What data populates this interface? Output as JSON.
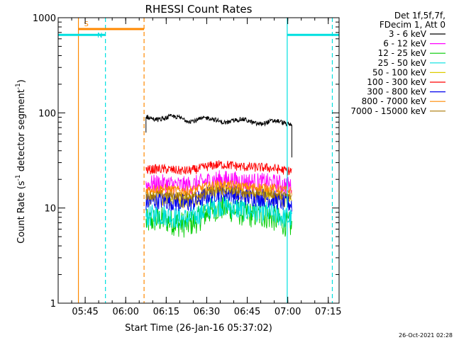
{
  "chart_data": {
    "type": "line",
    "title": "RHESSI Count Rates",
    "xlabel": "Start Time (26-Jan-16 05:37:02)",
    "ylabel_main": "Count Rate (s",
    "ylabel_sup1": "-1",
    "ylabel_mid": " detector segment",
    "ylabel_sup2": "-1",
    "ylabel_end": ")",
    "y_scale": "log",
    "ylim": [
      1,
      1000
    ],
    "xlim_minutes": [
      -2,
      102
    ],
    "x_tick_minutes": [
      8,
      23,
      38,
      53,
      68,
      83,
      98
    ],
    "x_tick_labels": [
      "05:45",
      "06:00",
      "06:15",
      "06:30",
      "06:45",
      "07:00",
      "07:15"
    ],
    "y_tick_values": [
      1,
      10,
      100,
      1000
    ],
    "y_tick_labels": [
      "1",
      "10",
      "100",
      "1000"
    ],
    "legend_header": [
      "Det 1f,5f,7f,",
      "FDecim 1, Att 0"
    ],
    "legend_position": "right",
    "series": [
      {
        "name": "3 - 6 keV",
        "color": "#000000",
        "base": 90,
        "lift": 0.0,
        "noise": 0.05
      },
      {
        "name": "6 - 12 keV",
        "color": "#ff00ff",
        "base": 17.5,
        "lift": 0.1,
        "noise": 0.1
      },
      {
        "name": "12 - 25 keV",
        "color": "#00cc00",
        "base": 7.0,
        "lift": 0.28,
        "noise": 0.14
      },
      {
        "name": "25 - 50 keV",
        "color": "#00e0e0",
        "base": 8.0,
        "lift": 0.22,
        "noise": 0.12
      },
      {
        "name": "50 - 100 keV",
        "color": "#ddcc00",
        "base": 12.5,
        "lift": 0.18,
        "noise": 0.09
      },
      {
        "name": "100 - 300 keV",
        "color": "#ff0000",
        "base": 25,
        "lift": 0.1,
        "noise": 0.05
      },
      {
        "name": "300 - 800 keV",
        "color": "#0000ee",
        "base": 11.5,
        "lift": 0.18,
        "noise": 0.1
      },
      {
        "name": "800 - 7000 keV",
        "color": "#ff8800",
        "base": 15.5,
        "lift": 0.1,
        "noise": 0.05
      },
      {
        "name": "7000 - 15000 keV",
        "color": "#aa7700",
        "base": 13.5,
        "lift": 0.1,
        "noise": 0.05
      }
    ],
    "data_start_minute": 30.5,
    "data_end_minute": 84.5,
    "flags": [
      {
        "label": "S",
        "color": "#ff8800",
        "start_minute": 5.5,
        "end_minute": 29.8,
        "y": 760
      },
      {
        "label": "N",
        "color": "#00e0e0",
        "start_minute": -2,
        "end_minute": 15.5,
        "y": 660
      },
      {
        "label": "",
        "color": "#00e0e0",
        "start_minute": 82.8,
        "end_minute": 102,
        "y": 660
      }
    ],
    "vlines": [
      {
        "minute": 5.5,
        "color": "#ff8800",
        "style": "solid"
      },
      {
        "minute": 15.5,
        "color": "#00e0e0",
        "style": "dashed"
      },
      {
        "minute": 29.8,
        "color": "#ff8800",
        "style": "dashed"
      },
      {
        "minute": 82.8,
        "color": "#00e0e0",
        "style": "solid"
      },
      {
        "minute": 99.5,
        "color": "#00e0e0",
        "style": "dashed"
      }
    ]
  },
  "footer": {
    "timestamp": "26-Oct-2021 02:28"
  }
}
